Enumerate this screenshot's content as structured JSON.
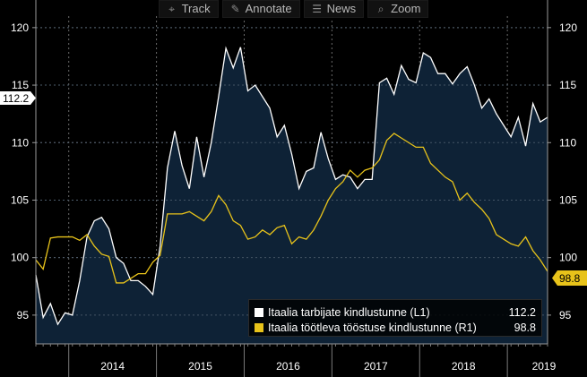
{
  "toolbar": {
    "track_label": "Track",
    "annotate_label": "Annotate",
    "news_label": "News",
    "zoom_label": "Zoom",
    "track_icon": "crosshair-icon",
    "annotate_icon": "pencil-icon",
    "news_icon": "newspaper-icon",
    "zoom_icon": "magnifier-icon"
  },
  "legend": {
    "series_1": {
      "label": "Itaalia tarbijate kindlustunne (L1)",
      "value": "112.2",
      "color": "#ffffff"
    },
    "series_2": {
      "label": "Itaalia töötleva tööstuse kindlustunne (R1)",
      "value": "98.8",
      "color": "#e8c31a"
    }
  },
  "value_flags": {
    "left": "112.2",
    "right": "98.8"
  },
  "colors": {
    "background": "#000000",
    "area_fill": "#0e2236",
    "consumer_line": "#ffffff",
    "industry_line": "#e8c31a",
    "grid": "#6a6a6a",
    "axis_text": "#ffffff"
  },
  "chart_data": {
    "type": "line",
    "x_axis": {
      "unit": "month",
      "start": "2013-08",
      "year_labels": [
        "2014",
        "2015",
        "2016",
        "2017",
        "2018",
        "2019"
      ]
    },
    "left_axis": {
      "ticks": [
        95,
        100,
        105,
        110,
        115,
        120
      ],
      "range": [
        92.5,
        121
      ]
    },
    "right_axis": {
      "ticks": [
        95,
        100,
        105,
        110,
        115,
        120
      ],
      "range": [
        92.5,
        121
      ]
    },
    "grid": true,
    "legend_position": "bottom-right",
    "series": [
      {
        "name": "Itaalia tarbijate kindlustunne (L1)",
        "axis": "left",
        "style": "area",
        "values": [
          98.5,
          94.8,
          96.0,
          94.2,
          95.2,
          95.0,
          98.0,
          101.8,
          103.2,
          103.5,
          102.5,
          100.0,
          99.5,
          98.0,
          98.0,
          97.5,
          96.8,
          101.0,
          107.8,
          111.0,
          108.0,
          106.0,
          110.5,
          107.0,
          110.0,
          114.0,
          118.2,
          116.5,
          118.3,
          114.5,
          115.0,
          114.0,
          113.0,
          110.5,
          111.5,
          109.0,
          106.0,
          107.5,
          107.8,
          110.9,
          108.6,
          106.8,
          107.2,
          107.0,
          106.0,
          106.8,
          106.8,
          115.2,
          115.6,
          114.2,
          116.7,
          115.5,
          115.2,
          117.8,
          117.4,
          116.0,
          116.0,
          115.1,
          116.0,
          116.6,
          115.0,
          113.0,
          113.8,
          112.5,
          111.5,
          110.5,
          112.2,
          109.7,
          113.4,
          111.8,
          112.2
        ]
      },
      {
        "name": "Itaalia töötleva tööstuse kindlustunne (R1)",
        "axis": "right",
        "style": "line",
        "values": [
          99.8,
          99.0,
          101.7,
          101.8,
          101.8,
          101.8,
          101.5,
          102.0,
          101.0,
          100.3,
          100.1,
          97.8,
          97.8,
          98.2,
          98.6,
          98.6,
          99.6,
          100.2,
          103.8,
          103.8,
          103.8,
          104.0,
          103.6,
          103.2,
          104.0,
          105.4,
          104.6,
          103.2,
          102.8,
          101.6,
          101.8,
          102.4,
          102.0,
          102.6,
          102.8,
          101.2,
          101.8,
          101.6,
          102.4,
          103.6,
          105.0,
          106.0,
          106.6,
          107.6,
          107.0,
          107.6,
          107.8,
          108.5,
          110.2,
          110.8,
          110.4,
          110.0,
          109.6,
          109.6,
          108.2,
          107.6,
          107.0,
          106.6,
          105.0,
          105.6,
          104.8,
          104.2,
          103.4,
          102.0,
          101.6,
          101.2,
          101.0,
          101.8,
          100.6,
          99.8,
          98.8
        ]
      }
    ]
  }
}
